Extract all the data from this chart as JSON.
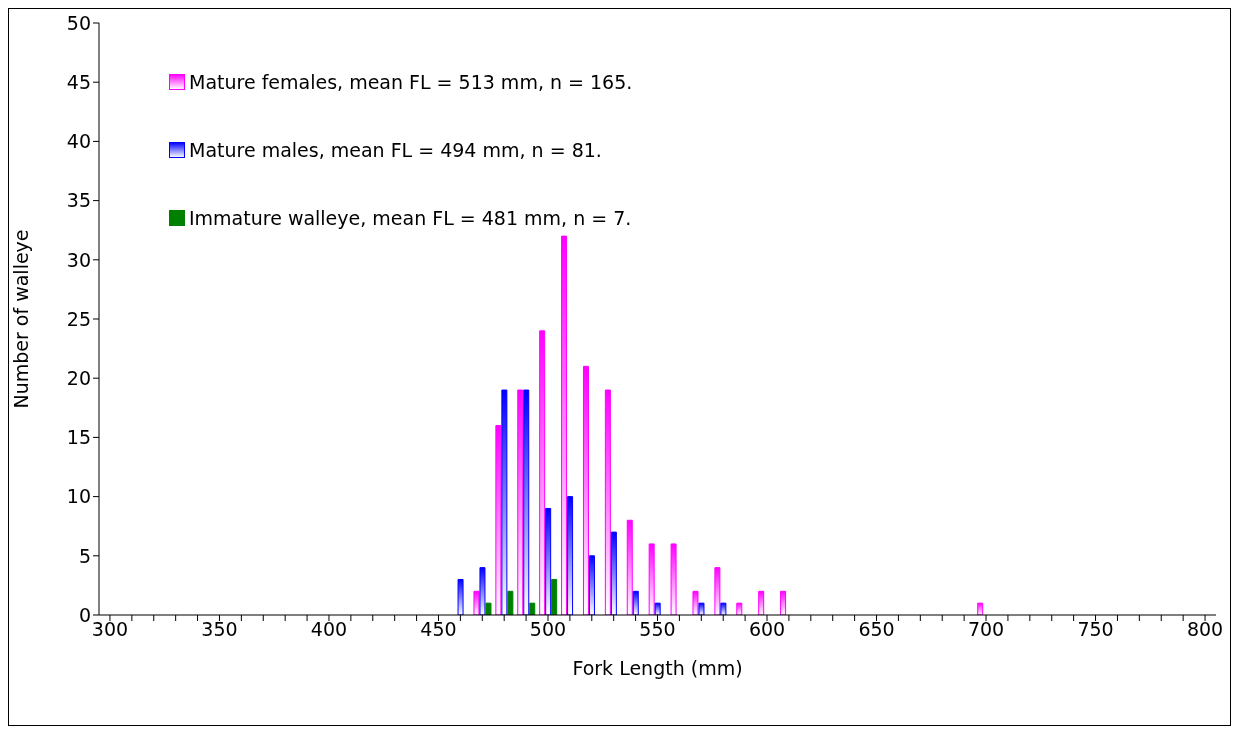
{
  "chart_data": {
    "type": "bar",
    "xlabel": "Fork Length (mm)",
    "ylabel": "Number of walleye",
    "categories": [
      "300",
      null,
      null,
      null,
      null,
      "350",
      null,
      null,
      null,
      null,
      "400",
      null,
      null,
      null,
      null,
      "450",
      null,
      null,
      null,
      null,
      "500",
      null,
      null,
      null,
      null,
      "550",
      null,
      null,
      null,
      null,
      "600",
      null,
      null,
      null,
      null,
      "650",
      null,
      null,
      null,
      null,
      "700",
      null,
      null,
      null,
      null,
      "750",
      null,
      null,
      null,
      null,
      "800"
    ],
    "series": [
      {
        "name": "Mature females, mean FL = 513 mm, n = 165.",
        "color": "#ff00ff",
        "values": [
          0,
          0,
          0,
          0,
          0,
          0,
          0,
          0,
          0,
          0,
          0,
          0,
          0,
          0,
          0,
          0,
          0,
          2,
          16,
          19,
          24,
          32,
          21,
          19,
          8,
          6,
          6,
          2,
          4,
          1,
          2,
          2,
          0,
          0,
          0,
          0,
          0,
          0,
          0,
          0,
          1,
          0,
          0,
          0,
          0,
          0,
          0,
          0,
          0,
          0,
          0
        ]
      },
      {
        "name": "Mature males, mean FL = 494 mm, n = 81.",
        "color": "#0000ff",
        "values": [
          0,
          0,
          0,
          0,
          0,
          0,
          0,
          0,
          0,
          0,
          0,
          0,
          0,
          0,
          0,
          0,
          3,
          4,
          19,
          19,
          9,
          10,
          5,
          7,
          2,
          1,
          0,
          1,
          1,
          0,
          0,
          0,
          0,
          0,
          0,
          0,
          0,
          0,
          0,
          0,
          0,
          0,
          0,
          0,
          0,
          0,
          0,
          0,
          0,
          0,
          0
        ]
      },
      {
        "name": "Immature walleye, mean FL = 481 mm, n = 7.",
        "color": "#008000",
        "values": [
          0,
          0,
          0,
          0,
          0,
          0,
          0,
          0,
          0,
          0,
          0,
          0,
          0,
          0,
          0,
          0,
          0,
          1,
          2,
          1,
          3,
          0,
          0,
          0,
          0,
          0,
          0,
          0,
          0,
          0,
          0,
          0,
          0,
          0,
          0,
          0,
          0,
          0,
          0,
          0,
          0,
          0,
          0,
          0,
          0,
          0,
          0,
          0,
          0,
          0,
          0
        ]
      }
    ],
    "ylim": [
      0,
      50
    ],
    "yticks": [
      0,
      5,
      10,
      15,
      20,
      25,
      30,
      35,
      40,
      45,
      50
    ],
    "grid": false,
    "legend": "top left"
  }
}
